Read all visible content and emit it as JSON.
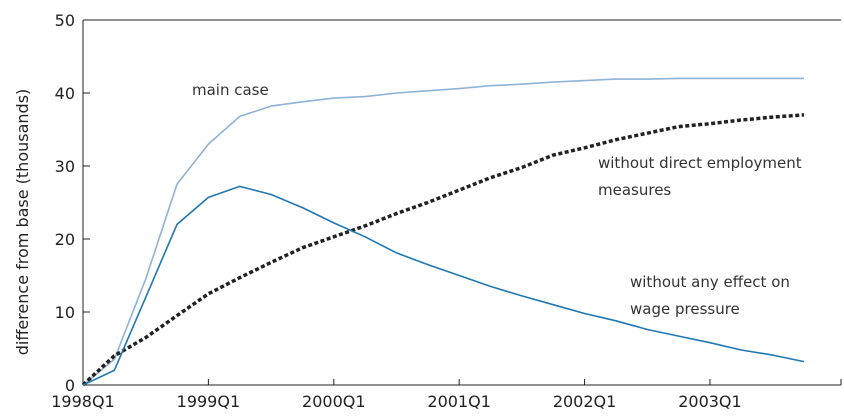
{
  "chart_data": {
    "type": "line",
    "title": "",
    "xlabel": "",
    "ylabel": "difference from base (thousands)",
    "ylim": [
      0,
      50
    ],
    "yticks": [
      0,
      10,
      20,
      30,
      40,
      50
    ],
    "xlim": [
      0,
      23
    ],
    "xtick_positions": [
      0,
      4,
      8,
      12,
      16,
      20
    ],
    "xtick_labels": [
      "1998Q1",
      "1999Q1",
      "2000Q1",
      "2001Q1",
      "2002Q1",
      "2003Q1"
    ],
    "grid": false,
    "legend": "none",
    "series": [
      {
        "name": "main case",
        "color": "#8db3d9",
        "style": "solid",
        "values": [
          0,
          3.5,
          14.5,
          27.5,
          33,
          36.8,
          38.2,
          38.8,
          39.3,
          39.5,
          40,
          40.3,
          40.6,
          41,
          41.2,
          41.5,
          41.7,
          41.9,
          41.9,
          42,
          42,
          42,
          42,
          42
        ]
      },
      {
        "name": "without direct employment measures",
        "color": "#222222",
        "style": "dotted",
        "values": [
          0,
          4,
          6.5,
          9.5,
          12.5,
          14.7,
          16.8,
          18.8,
          20.3,
          21.8,
          23.5,
          25,
          26.7,
          28.4,
          29.8,
          31.5,
          32.5,
          33.6,
          34.5,
          35.4,
          35.8,
          36.3,
          36.7,
          37
        ]
      },
      {
        "name": "without any effect on wage pressure",
        "color": "#1f78b4",
        "style": "solid",
        "values": [
          0,
          2,
          12,
          22,
          25.7,
          27.2,
          26.1,
          24.3,
          22.2,
          20.3,
          18.1,
          16.5,
          15,
          13.5,
          12.2,
          11,
          9.8,
          8.8,
          7.6,
          6.7,
          5.8,
          4.8,
          4.1,
          3.2
        ]
      }
    ],
    "annotations": [
      {
        "label": "main case",
        "series": 0
      },
      {
        "lines": [
          "without direct employment",
          "measures"
        ],
        "series": 1
      },
      {
        "lines": [
          "without any effect on",
          "wage pressure"
        ],
        "series": 2
      }
    ]
  }
}
